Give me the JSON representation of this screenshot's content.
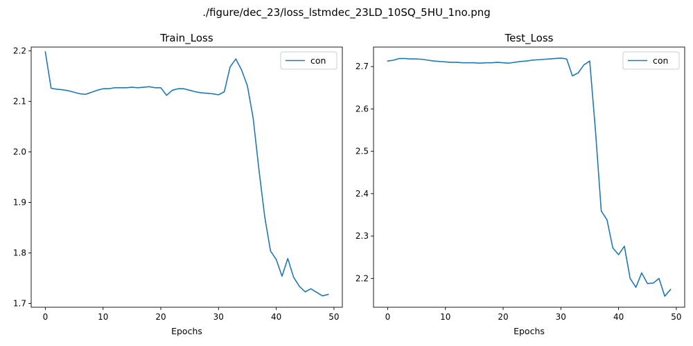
{
  "figure": {
    "suptitle": "./figure/dec_23/loss_lstmdec_23LD_10SQ_5HU_1no.png"
  },
  "chart_data": [
    {
      "type": "line",
      "title": "Train_Loss",
      "xlabel": "Epochs",
      "ylabel": "",
      "xlim": [
        -2.45,
        51.45
      ],
      "ylim": [
        1.6925,
        2.2075
      ],
      "xticks": [
        0,
        10,
        20,
        30,
        40,
        50
      ],
      "yticks": [
        1.7,
        1.8,
        1.9,
        2.0,
        2.1,
        2.2
      ],
      "ytick_labels": [
        "1.7",
        "1.8",
        "1.9",
        "2.0",
        "2.1",
        "2.2"
      ],
      "xtick_labels": [
        "0",
        "10",
        "20",
        "30",
        "40",
        "50"
      ],
      "legend": "top-right",
      "grid": false,
      "series": [
        {
          "name": "con",
          "color": "#1f77b4",
          "x": [
            0,
            1,
            2,
            3,
            4,
            5,
            6,
            7,
            8,
            9,
            10,
            11,
            12,
            13,
            14,
            15,
            16,
            17,
            18,
            19,
            20,
            21,
            22,
            23,
            24,
            25,
            26,
            27,
            28,
            29,
            30,
            31,
            32,
            33,
            34,
            35,
            36,
            37,
            38,
            39,
            40,
            41,
            42,
            43,
            44,
            45,
            46,
            47,
            48,
            49
          ],
          "values": [
            2.198,
            2.126,
            2.124,
            2.123,
            2.121,
            2.118,
            2.115,
            2.114,
            2.118,
            2.122,
            2.125,
            2.125,
            2.127,
            2.127,
            2.127,
            2.128,
            2.127,
            2.128,
            2.129,
            2.127,
            2.127,
            2.112,
            2.122,
            2.125,
            2.125,
            2.122,
            2.119,
            2.117,
            2.116,
            2.115,
            2.113,
            2.119,
            2.168,
            2.184,
            2.162,
            2.131,
            2.067,
            1.965,
            1.872,
            1.804,
            1.787,
            1.754,
            1.789,
            1.752,
            1.734,
            1.723,
            1.729,
            1.722,
            1.715,
            1.718
          ]
        }
      ]
    },
    {
      "type": "line",
      "title": "Test_Loss",
      "xlabel": "Epochs",
      "ylabel": "",
      "xlim": [
        -2.45,
        51.45
      ],
      "ylim": [
        2.132,
        2.746
      ],
      "xticks": [
        0,
        10,
        20,
        30,
        40,
        50
      ],
      "yticks": [
        2.2,
        2.3,
        2.4,
        2.5,
        2.6,
        2.7
      ],
      "ytick_labels": [
        "2.2",
        "2.3",
        "2.4",
        "2.5",
        "2.6",
        "2.7"
      ],
      "xtick_labels": [
        "0",
        "10",
        "20",
        "30",
        "40",
        "50"
      ],
      "legend": "top-right",
      "grid": false,
      "series": [
        {
          "name": "con",
          "color": "#1f77b4",
          "x": [
            0,
            1,
            2,
            3,
            4,
            5,
            6,
            7,
            8,
            9,
            10,
            11,
            12,
            13,
            14,
            15,
            16,
            17,
            18,
            19,
            20,
            21,
            22,
            23,
            24,
            25,
            26,
            27,
            28,
            29,
            30,
            31,
            32,
            33,
            34,
            35,
            36,
            37,
            38,
            39,
            40,
            41,
            42,
            43,
            44,
            45,
            46,
            47,
            48,
            49
          ],
          "values": [
            2.713,
            2.715,
            2.719,
            2.719,
            2.718,
            2.718,
            2.717,
            2.715,
            2.713,
            2.712,
            2.711,
            2.71,
            2.71,
            2.709,
            2.709,
            2.709,
            2.708,
            2.709,
            2.709,
            2.71,
            2.709,
            2.708,
            2.71,
            2.712,
            2.713,
            2.715,
            2.716,
            2.717,
            2.718,
            2.719,
            2.72,
            2.718,
            2.678,
            2.685,
            2.704,
            2.713,
            2.548,
            2.359,
            2.338,
            2.272,
            2.256,
            2.276,
            2.2,
            2.179,
            2.213,
            2.188,
            2.189,
            2.2,
            2.158,
            2.174
          ]
        }
      ]
    }
  ]
}
